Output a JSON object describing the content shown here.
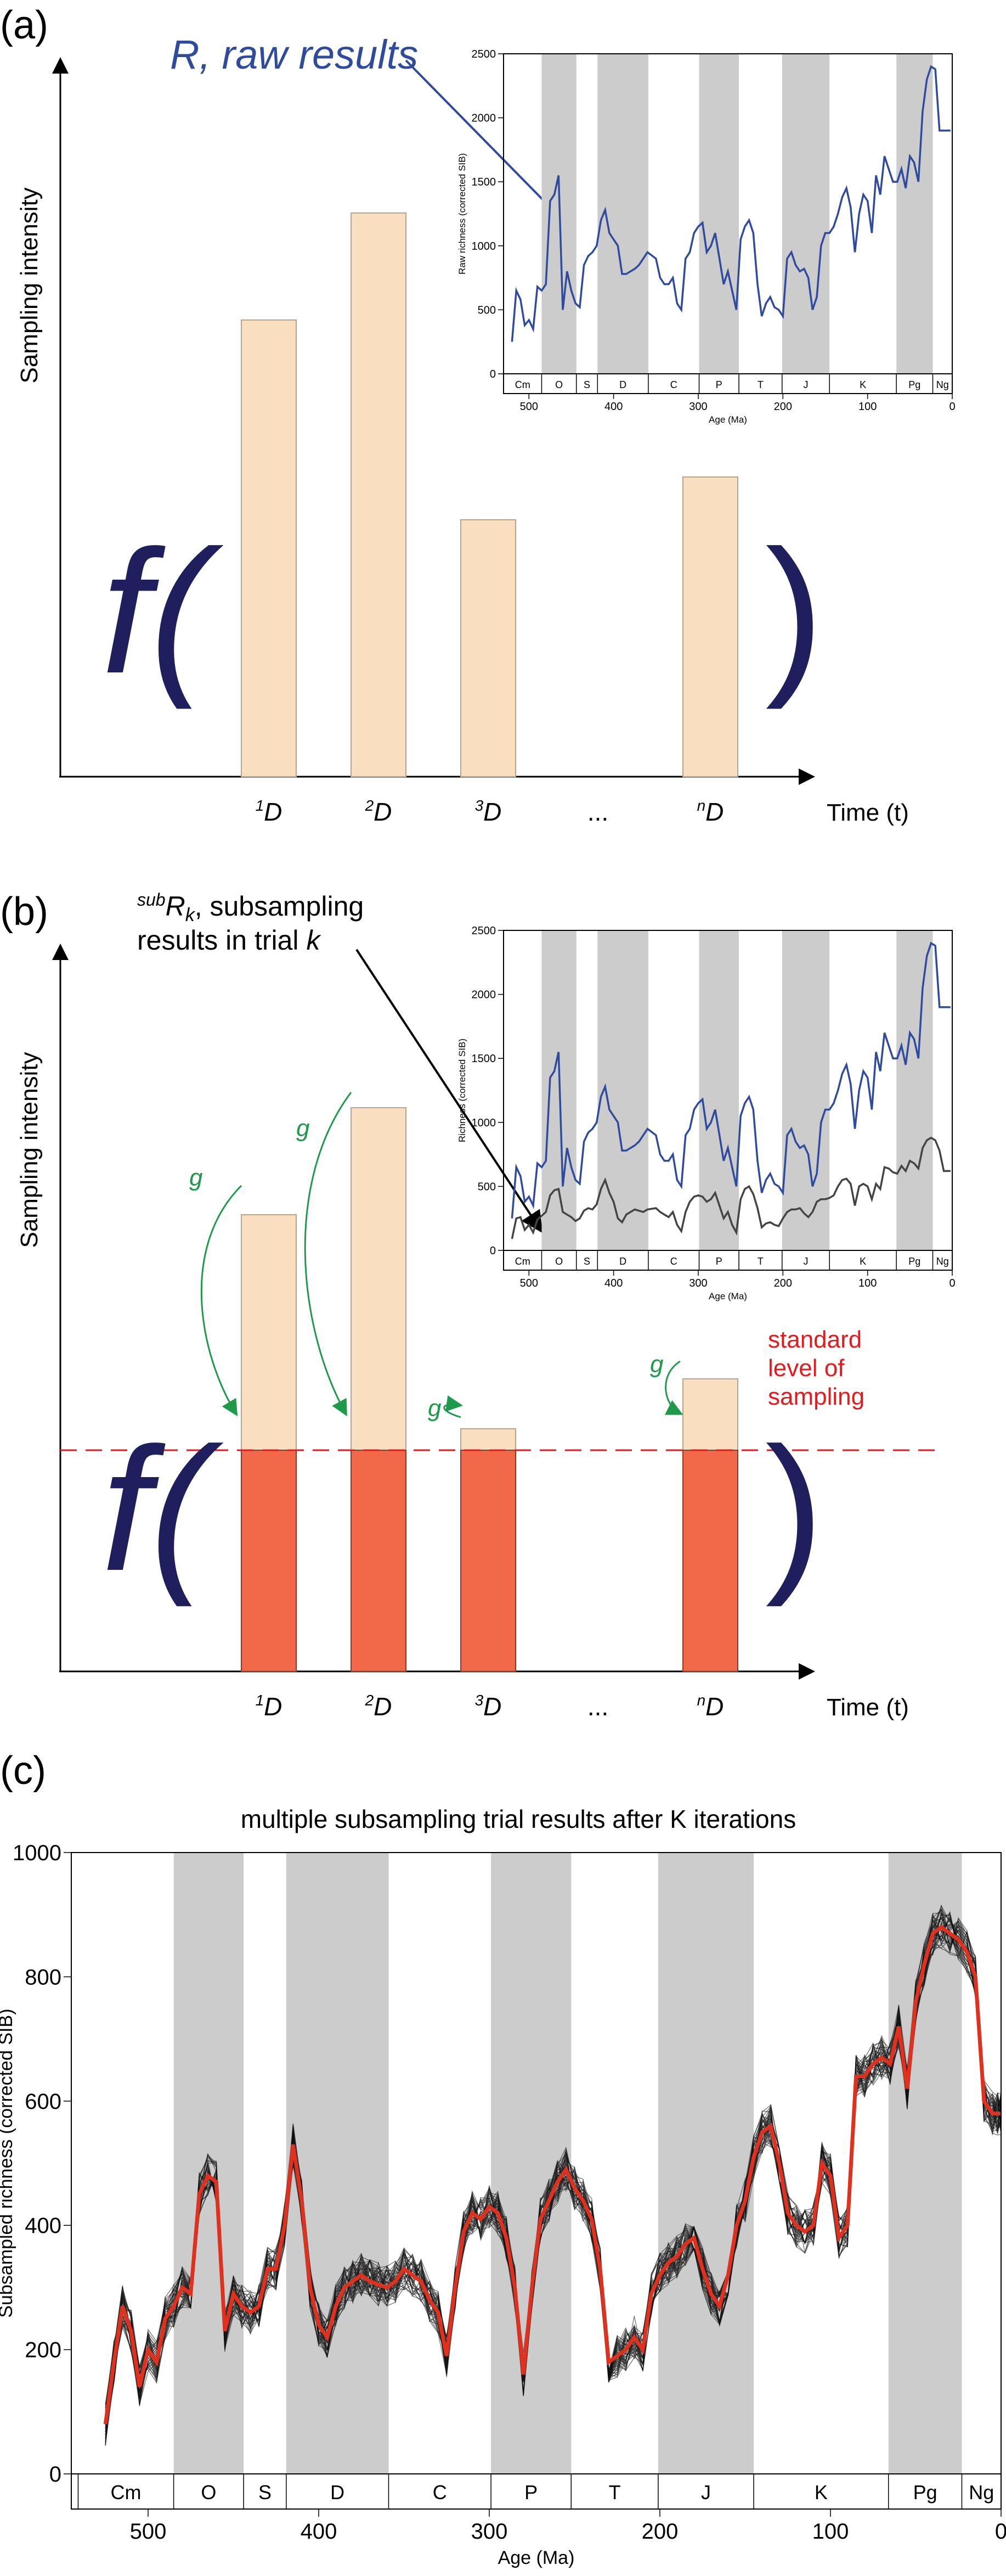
{
  "colors": {
    "blue": "#2f4b9e",
    "navy": "#1f1f5e",
    "bar": "#f9dfbf",
    "bar_stroke": "#b3a58f",
    "sub": "#f2694a",
    "green": "#1f9a4a",
    "red": "#e41a1c",
    "grey_band": "#cccccc",
    "grey_line": "#444444"
  },
  "panels": {
    "a": {
      "letter": "(a)",
      "ylabel": "Sampling intensity",
      "xlabel": "Time (t)",
      "annotation": "R, raw results",
      "f_symbol": "f(",
      "close_paren": ")",
      "bar_labels": [
        "1D",
        "2D",
        "3D",
        "...",
        "nD"
      ],
      "bar_values": [
        0.64,
        0.79,
        0.36,
        null,
        0.42
      ]
    },
    "b": {
      "letter": "(b)",
      "ylabel": "Sampling intensity",
      "xlabel": "Time (t)",
      "annotation_line1": "subRk, subsampling",
      "annotation_line2": "results in trial k",
      "annotation_sup": "sub",
      "annotation_R": "R",
      "annotation_k": "k",
      "annotation_rest": ", subsampling",
      "f_symbol": "f(",
      "close_paren": ")",
      "g_label": "g",
      "standard_label": [
        "standard",
        "level of",
        "sampling"
      ],
      "bar_labels": [
        "1D",
        "2D",
        "3D",
        "...",
        "nD"
      ],
      "bar_values": [
        0.64,
        0.79,
        0.34,
        null,
        0.41
      ],
      "standard_level": 0.31
    },
    "c": {
      "letter": "(c)",
      "title": "multiple subsampling trial results after K iterations"
    }
  },
  "chart_data": [
    {
      "type": "line",
      "panel": "a-inset",
      "ylabel": "Raw richness (corrected SIB)",
      "xlabel": "Age (Ma)",
      "xlim": [
        530,
        0
      ],
      "ylim": [
        0,
        2500
      ],
      "yticks": [
        0,
        500,
        1000,
        1500,
        2000,
        2500
      ],
      "xticks": [
        500,
        400,
        300,
        200,
        100,
        0
      ],
      "periods": [
        {
          "name": "Cm",
          "start": 541,
          "end": 485,
          "shaded": false
        },
        {
          "name": "O",
          "start": 485,
          "end": 444,
          "shaded": true
        },
        {
          "name": "S",
          "start": 444,
          "end": 419,
          "shaded": false
        },
        {
          "name": "D",
          "start": 419,
          "end": 359,
          "shaded": true
        },
        {
          "name": "C",
          "start": 359,
          "end": 299,
          "shaded": false
        },
        {
          "name": "P",
          "start": 299,
          "end": 252,
          "shaded": true
        },
        {
          "name": "T",
          "start": 252,
          "end": 201,
          "shaded": false
        },
        {
          "name": "J",
          "start": 201,
          "end": 145,
          "shaded": true
        },
        {
          "name": "K",
          "start": 145,
          "end": 66,
          "shaded": false
        },
        {
          "name": "Pg",
          "start": 66,
          "end": 23,
          "shaded": true
        },
        {
          "name": "Ng",
          "start": 23,
          "end": 0,
          "shaded": false
        }
      ],
      "series": [
        {
          "name": "raw",
          "x": [
            520,
            515,
            510,
            505,
            500,
            495,
            490,
            485,
            480,
            475,
            470,
            465,
            460,
            455,
            450,
            445,
            440,
            435,
            430,
            425,
            420,
            415,
            410,
            405,
            400,
            395,
            390,
            385,
            380,
            375,
            370,
            365,
            360,
            350,
            345,
            340,
            335,
            330,
            325,
            320,
            315,
            310,
            305,
            300,
            295,
            290,
            285,
            280,
            275,
            270,
            265,
            260,
            255,
            250,
            245,
            240,
            235,
            230,
            225,
            220,
            215,
            210,
            205,
            200,
            195,
            190,
            185,
            180,
            175,
            170,
            165,
            160,
            155,
            150,
            145,
            140,
            135,
            130,
            125,
            120,
            115,
            110,
            105,
            100,
            95,
            90,
            85,
            80,
            75,
            70,
            65,
            60,
            55,
            50,
            45,
            40,
            35,
            30,
            25,
            20,
            15,
            10,
            5,
            2
          ],
          "y": [
            250,
            650,
            580,
            380,
            420,
            350,
            680,
            650,
            700,
            1350,
            1400,
            1550,
            500,
            800,
            650,
            550,
            520,
            850,
            920,
            950,
            1000,
            1200,
            1280,
            1100,
            1050,
            1000,
            780,
            780,
            800,
            820,
            850,
            900,
            950,
            900,
            750,
            700,
            700,
            750,
            550,
            500,
            900,
            950,
            1100,
            1150,
            1180,
            950,
            1000,
            1100,
            900,
            700,
            800,
            650,
            500,
            1050,
            1150,
            1200,
            1100,
            700,
            450,
            550,
            600,
            520,
            500,
            450,
            900,
            950,
            850,
            800,
            820,
            750,
            500,
            600,
            1000,
            1100,
            1100,
            1150,
            1250,
            1380,
            1450,
            1300,
            950,
            1250,
            1400,
            1350,
            1100,
            1550,
            1400,
            1700,
            1600,
            1500,
            1500,
            1600,
            1450,
            1700,
            1650,
            1500,
            2050,
            2300,
            2400,
            2380,
            1900,
            1900,
            1900,
            1900
          ]
        }
      ]
    },
    {
      "type": "line",
      "panel": "b-inset",
      "ylabel": "Richness (corrected SIB)",
      "xlabel": "Age (Ma)",
      "xlim": [
        530,
        0
      ],
      "ylim": [
        0,
        2500
      ],
      "yticks": [
        0,
        500,
        1000,
        1500,
        2000,
        2500
      ],
      "xticks": [
        500,
        400,
        300,
        200,
        100,
        0
      ],
      "series": [
        {
          "name": "raw",
          "ref": "a-inset"
        },
        {
          "name": "subsampled",
          "x": [
            520,
            515,
            510,
            505,
            500,
            495,
            490,
            485,
            480,
            475,
            470,
            465,
            460,
            455,
            450,
            445,
            440,
            435,
            430,
            425,
            420,
            415,
            410,
            405,
            400,
            395,
            390,
            385,
            380,
            375,
            370,
            365,
            360,
            350,
            345,
            340,
            335,
            330,
            325,
            320,
            315,
            310,
            305,
            300,
            295,
            290,
            285,
            280,
            275,
            270,
            265,
            260,
            255,
            250,
            245,
            240,
            235,
            230,
            225,
            220,
            215,
            210,
            205,
            200,
            195,
            190,
            185,
            180,
            175,
            170,
            165,
            160,
            155,
            150,
            145,
            140,
            135,
            130,
            125,
            120,
            115,
            110,
            105,
            100,
            95,
            90,
            85,
            80,
            75,
            70,
            65,
            60,
            55,
            50,
            45,
            40,
            35,
            30,
            25,
            20,
            15,
            10,
            5,
            2
          ],
          "y": [
            90,
            250,
            260,
            160,
            200,
            140,
            240,
            270,
            300,
            430,
            470,
            480,
            300,
            280,
            260,
            230,
            250,
            310,
            330,
            320,
            360,
            480,
            550,
            450,
            380,
            250,
            220,
            280,
            300,
            320,
            310,
            300,
            320,
            330,
            300,
            280,
            260,
            300,
            200,
            150,
            300,
            380,
            420,
            430,
            420,
            380,
            400,
            450,
            350,
            250,
            300,
            200,
            140,
            400,
            480,
            500,
            440,
            330,
            180,
            210,
            220,
            200,
            190,
            250,
            300,
            320,
            320,
            330,
            290,
            260,
            300,
            380,
            400,
            400,
            410,
            430,
            500,
            550,
            560,
            520,
            350,
            500,
            520,
            500,
            400,
            520,
            480,
            650,
            640,
            610,
            600,
            660,
            620,
            700,
            680,
            640,
            800,
            860,
            880,
            860,
            780,
            620,
            620,
            620
          ]
        }
      ]
    },
    {
      "type": "line",
      "panel": "c",
      "title": "multiple subsampling trial results after K iterations",
      "ylabel": "Subsampled richness (corrected SIB)",
      "xlabel": "Age (Ma)",
      "xlim": [
        545,
        0
      ],
      "ylim": [
        0,
        1000
      ],
      "yticks": [
        0,
        200,
        400,
        600,
        800,
        1000
      ],
      "xticks": [
        500,
        400,
        300,
        200,
        100,
        0
      ],
      "periods": [
        {
          "name": "Cm",
          "start": 541,
          "end": 485,
          "shaded": false
        },
        {
          "name": "O",
          "start": 485,
          "end": 444,
          "shaded": true
        },
        {
          "name": "S",
          "start": 444,
          "end": 419,
          "shaded": false
        },
        {
          "name": "D",
          "start": 419,
          "end": 359,
          "shaded": true
        },
        {
          "name": "C",
          "start": 359,
          "end": 299,
          "shaded": false
        },
        {
          "name": "P",
          "start": 299,
          "end": 252,
          "shaded": true
        },
        {
          "name": "T",
          "start": 252,
          "end": 201,
          "shaded": false
        },
        {
          "name": "J",
          "start": 201,
          "end": 145,
          "shaded": true
        },
        {
          "name": "K",
          "start": 145,
          "end": 66,
          "shaded": false
        },
        {
          "name": "Pg",
          "start": 66,
          "end": 23,
          "shaded": true
        },
        {
          "name": "Ng",
          "start": 23,
          "end": 0,
          "shaded": false
        }
      ],
      "series": [
        {
          "name": "mean",
          "color": "#e0301e",
          "x": [
            525,
            520,
            515,
            510,
            505,
            500,
            495,
            490,
            485,
            480,
            475,
            470,
            465,
            460,
            455,
            450,
            445,
            440,
            435,
            430,
            425,
            420,
            415,
            410,
            405,
            400,
            395,
            390,
            385,
            380,
            375,
            370,
            365,
            360,
            355,
            350,
            345,
            340,
            335,
            330,
            325,
            320,
            315,
            310,
            305,
            300,
            295,
            290,
            285,
            280,
            275,
            270,
            265,
            260,
            255,
            250,
            245,
            240,
            235,
            230,
            225,
            220,
            215,
            210,
            205,
            200,
            195,
            190,
            185,
            180,
            175,
            170,
            165,
            160,
            155,
            150,
            145,
            140,
            135,
            130,
            125,
            120,
            115,
            110,
            105,
            100,
            95,
            90,
            85,
            80,
            75,
            70,
            65,
            60,
            55,
            50,
            45,
            40,
            35,
            30,
            25,
            20,
            15,
            10,
            5,
            2,
            0
          ],
          "y": [
            80,
            180,
            270,
            230,
            140,
            200,
            180,
            250,
            270,
            300,
            290,
            450,
            480,
            470,
            230,
            290,
            270,
            260,
            270,
            330,
            330,
            400,
            530,
            440,
            300,
            240,
            220,
            270,
            300,
            310,
            320,
            310,
            305,
            300,
            310,
            330,
            320,
            310,
            280,
            260,
            190,
            300,
            390,
            420,
            410,
            430,
            420,
            380,
            300,
            160,
            300,
            410,
            440,
            470,
            490,
            460,
            440,
            410,
            330,
            180,
            190,
            200,
            220,
            200,
            290,
            320,
            340,
            350,
            370,
            380,
            330,
            290,
            270,
            320,
            400,
            440,
            510,
            550,
            560,
            500,
            420,
            400,
            390,
            400,
            500,
            480,
            380,
            400,
            640,
            640,
            660,
            670,
            660,
            720,
            620,
            760,
            820,
            870,
            880,
            870,
            860,
            840,
            800,
            600,
            580,
            580,
            580
          ]
        }
      ]
    }
  ]
}
